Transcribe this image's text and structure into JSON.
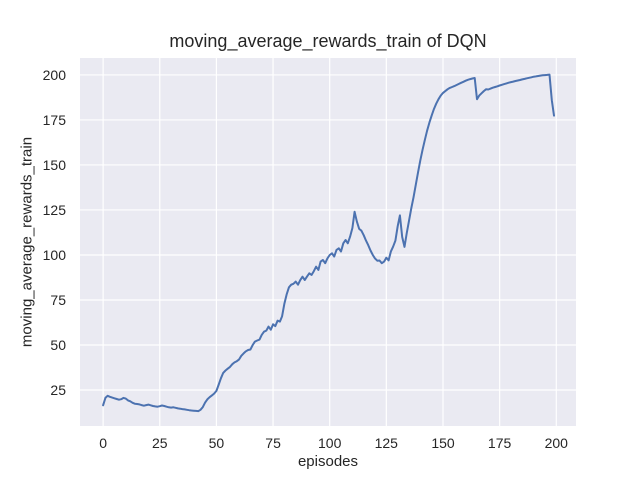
{
  "figure": {
    "title": "moving_average_rewards_train of DQN",
    "xlabel": "episodes",
    "ylabel": "moving_average_rewards_train"
  },
  "colors": {
    "figure_background": "#FFFFFF",
    "plot_background": "#EAEAF2",
    "grid": "#FFFFFF",
    "line": "#4C72B0",
    "text": "#262626"
  },
  "chart_data": {
    "type": "line",
    "title": "moving_average_rewards_train of DQN",
    "xlabel": "episodes",
    "ylabel": "moving_average_rewards_train",
    "legend": false,
    "grid": true,
    "x_start": 0,
    "x_step": 1,
    "xticks": [
      0,
      25,
      50,
      75,
      100,
      125,
      150,
      175,
      200
    ],
    "yticks": [
      25,
      50,
      75,
      100,
      125,
      150,
      175,
      200
    ],
    "xlim": [
      -10.2,
      208.7
    ],
    "ylim": [
      5.0,
      209.4
    ],
    "values": [
      16.5,
      20.6,
      21.8,
      21.2,
      20.8,
      20.4,
      20.0,
      19.6,
      19.9,
      20.6,
      20.2,
      19.2,
      18.7,
      17.9,
      17.4,
      17.2,
      17.0,
      16.6,
      16.3,
      16.6,
      16.9,
      16.5,
      16.1,
      15.9,
      15.7,
      16.0,
      16.4,
      16.1,
      15.7,
      15.4,
      15.2,
      15.4,
      15.1,
      14.8,
      14.6,
      14.4,
      14.2,
      14.0,
      13.8,
      13.6,
      13.5,
      13.4,
      13.3,
      14.0,
      15.5,
      18.0,
      19.8,
      21.0,
      22.0,
      23.0,
      24.5,
      28.0,
      31.5,
      34.5,
      35.8,
      36.8,
      37.8,
      39.3,
      40.3,
      41.0,
      42.0,
      44.0,
      45.3,
      46.5,
      47.2,
      47.5,
      50.0,
      51.9,
      52.5,
      53.0,
      55.6,
      57.4,
      58.0,
      60.2,
      58.5,
      61.5,
      60.5,
      63.5,
      63.0,
      66.0,
      73.0,
      78.0,
      82.0,
      83.5,
      84.0,
      85.2,
      83.5,
      86.0,
      87.9,
      86.1,
      88.0,
      89.8,
      88.9,
      91.0,
      93.5,
      91.7,
      96.3,
      97.2,
      95.4,
      98.1,
      100.0,
      100.9,
      99.1,
      102.8,
      103.7,
      101.9,
      106.5,
      108.3,
      106.5,
      110.2,
      115.0,
      124.0,
      118.5,
      114.5,
      113.5,
      111.0,
      108.0,
      105.5,
      102.5,
      100.0,
      98.1,
      96.8,
      96.9,
      95.4,
      96.3,
      98.5,
      97.0,
      102.0,
      104.6,
      108.0,
      116.0,
      122.0,
      110.0,
      104.5,
      112.0,
      119.0,
      126.0,
      132.0,
      139.0,
      146.0,
      152.5,
      158.5,
      164.0,
      169.0,
      173.5,
      177.5,
      181.0,
      184.0,
      186.5,
      188.5,
      190.0,
      191.0,
      192.0,
      192.8,
      193.3,
      193.8,
      194.4,
      195.0,
      195.6,
      196.2,
      196.8,
      197.3,
      197.7,
      198.0,
      198.3,
      186.5,
      188.5,
      189.8,
      191.0,
      192.0,
      191.9,
      192.4,
      192.9,
      193.3,
      193.7,
      194.1,
      194.5,
      194.9,
      195.3,
      195.7,
      196.0,
      196.3,
      196.6,
      196.9,
      197.2,
      197.5,
      197.8,
      198.1,
      198.4,
      198.7,
      199.0,
      199.2,
      199.4,
      199.6,
      199.8,
      199.9,
      200.0,
      200.2,
      186.0,
      177.4
    ]
  }
}
